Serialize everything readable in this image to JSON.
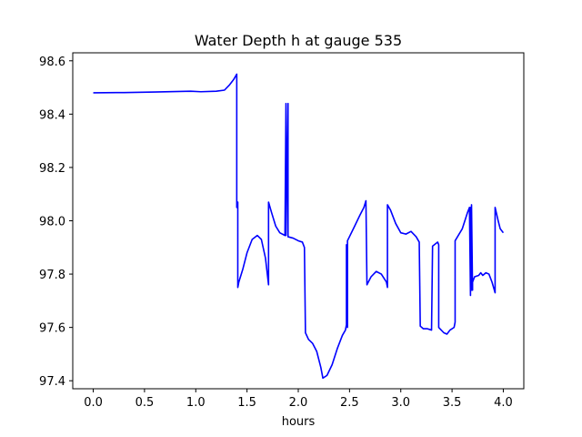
{
  "chart_data": {
    "type": "line",
    "title": "Water Depth h at gauge 535",
    "xlabel": "hours",
    "ylabel": "",
    "xlim": [
      -0.2,
      4.2
    ],
    "ylim": [
      97.37,
      98.63
    ],
    "xticks": [
      0.0,
      0.5,
      1.0,
      1.5,
      2.0,
      2.5,
      3.0,
      3.5,
      4.0
    ],
    "xtick_labels": [
      "0.0",
      "0.5",
      "1.0",
      "1.5",
      "2.0",
      "2.5",
      "3.0",
      "3.5",
      "4.0"
    ],
    "yticks": [
      97.4,
      97.6,
      97.8,
      98.0,
      98.2,
      98.4,
      98.6
    ],
    "ytick_labels": [
      "97.4",
      "97.6",
      "97.8",
      "98.0",
      "98.2",
      "98.4",
      "98.6"
    ],
    "grid": false,
    "series": [
      {
        "color": "#0000ff",
        "x": [
          0.0,
          0.3,
          0.6,
          0.95,
          1.05,
          1.2,
          1.28,
          1.33,
          1.37,
          1.4,
          1.4,
          1.41,
          1.41,
          1.42,
          1.46,
          1.5,
          1.55,
          1.6,
          1.64,
          1.68,
          1.71,
          1.71,
          1.74,
          1.78,
          1.82,
          1.87,
          1.88,
          1.88,
          1.9,
          1.9,
          1.95,
          2.0,
          2.04,
          2.06,
          2.07,
          2.1,
          2.14,
          2.18,
          2.22,
          2.24,
          2.28,
          2.33,
          2.38,
          2.43,
          2.46,
          2.47,
          2.47,
          2.48,
          2.48,
          2.55,
          2.6,
          2.64,
          2.66,
          2.67,
          2.71,
          2.76,
          2.81,
          2.86,
          2.87,
          2.87,
          2.9,
          2.95,
          3.0,
          3.05,
          3.1,
          3.15,
          3.18,
          3.19,
          3.22,
          3.26,
          3.3,
          3.31,
          3.31,
          3.36,
          3.37,
          3.37,
          3.42,
          3.45,
          3.48,
          3.52,
          3.53,
          3.53,
          3.6,
          3.65,
          3.67,
          3.68,
          3.68,
          3.69,
          3.69,
          3.7,
          3.7,
          3.72,
          3.76,
          3.78,
          3.8,
          3.83,
          3.86,
          3.89,
          3.92,
          3.92,
          3.95,
          3.97,
          4.0
        ],
        "y": [
          98.48,
          98.481,
          98.483,
          98.486,
          98.484,
          98.486,
          98.49,
          98.51,
          98.53,
          98.55,
          98.05,
          98.07,
          97.75,
          97.77,
          97.82,
          97.88,
          97.93,
          97.945,
          97.93,
          97.86,
          97.76,
          98.07,
          98.03,
          97.98,
          97.955,
          97.945,
          98.44,
          97.945,
          98.44,
          97.94,
          97.935,
          97.925,
          97.92,
          97.9,
          97.58,
          97.555,
          97.54,
          97.51,
          97.45,
          97.41,
          97.42,
          97.46,
          97.52,
          97.57,
          97.59,
          97.61,
          97.91,
          97.6,
          97.925,
          97.98,
          98.02,
          98.05,
          98.075,
          97.76,
          97.79,
          97.81,
          97.8,
          97.77,
          97.75,
          98.06,
          98.04,
          97.99,
          97.955,
          97.95,
          97.96,
          97.94,
          97.92,
          97.605,
          97.595,
          97.595,
          97.59,
          97.905,
          97.905,
          97.92,
          97.91,
          97.6,
          97.58,
          97.575,
          97.59,
          97.6,
          97.62,
          97.925,
          97.97,
          98.03,
          98.05,
          97.72,
          98.05,
          97.74,
          98.06,
          97.74,
          97.77,
          97.79,
          97.795,
          97.805,
          97.795,
          97.805,
          97.8,
          97.77,
          97.73,
          98.05,
          98.0,
          97.97,
          97.955
        ]
      }
    ]
  }
}
